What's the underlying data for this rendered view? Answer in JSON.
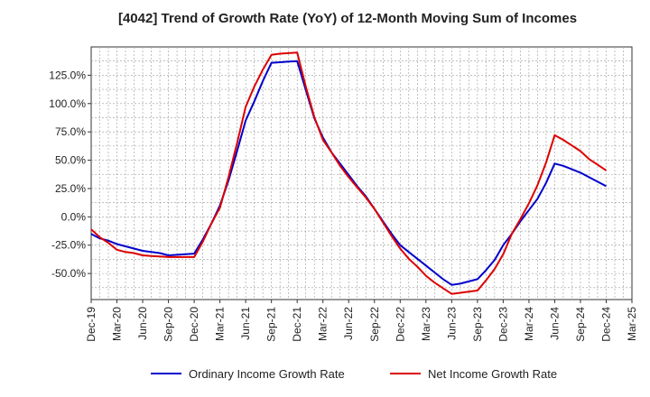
{
  "chart_data": {
    "type": "line",
    "title": "[4042]  Trend of Growth Rate (YoY) of 12-Month Moving Sum of Incomes",
    "xlabel": "",
    "ylabel": "",
    "x": [
      "Dec-19",
      "Jan-20",
      "Feb-20",
      "Mar-20",
      "Apr-20",
      "May-20",
      "Jun-20",
      "Jul-20",
      "Aug-20",
      "Sep-20",
      "Oct-20",
      "Nov-20",
      "Dec-20",
      "Jan-21",
      "Feb-21",
      "Mar-21",
      "Apr-21",
      "May-21",
      "Jun-21",
      "Jul-21",
      "Aug-21",
      "Sep-21",
      "Oct-21",
      "Nov-21",
      "Dec-21",
      "Jan-22",
      "Feb-22",
      "Mar-22",
      "Apr-22",
      "May-22",
      "Jun-22",
      "Jul-22",
      "Aug-22",
      "Sep-22",
      "Oct-22",
      "Nov-22",
      "Dec-22",
      "Jan-23",
      "Feb-23",
      "Mar-23",
      "Apr-23",
      "May-23",
      "Jun-23",
      "Jul-23",
      "Aug-23",
      "Sep-23",
      "Oct-23",
      "Nov-23",
      "Dec-23",
      "Jan-24",
      "Feb-24",
      "Mar-24",
      "Apr-24",
      "May-24",
      "Jun-24",
      "Jul-24",
      "Aug-24",
      "Sep-24",
      "Oct-24",
      "Nov-24",
      "Dec-24"
    ],
    "x_tick_labels": [
      "Dec-19",
      "Mar-20",
      "Jun-20",
      "Sep-20",
      "Dec-20",
      "Mar-21",
      "Jun-21",
      "Sep-21",
      "Dec-21",
      "Mar-22",
      "Jun-22",
      "Sep-22",
      "Dec-22",
      "Mar-23",
      "Jun-23",
      "Sep-23",
      "Dec-23",
      "Mar-24",
      "Jun-24",
      "Sep-24",
      "Dec-24",
      "Mar-25"
    ],
    "y_tick_labels": [
      "-50.0%",
      "-25.0%",
      "0.0%",
      "25.0%",
      "50.0%",
      "75.0%",
      "100.0%",
      "125.0%"
    ],
    "y_ticks": [
      -50,
      -25,
      0,
      25,
      50,
      75,
      100,
      125
    ],
    "ylim": [
      -73,
      150
    ],
    "xlim": [
      "Dec-19",
      "Mar-25"
    ],
    "grid": true,
    "legend_position": "bottom",
    "series": [
      {
        "name": "Ordinary Income Growth Rate",
        "color": "#0000cc",
        "values": [
          -15,
          -19,
          -21,
          -24,
          -26,
          -28,
          -30,
          -31,
          -32,
          -34,
          -33.5,
          -33,
          -32.5,
          -20,
          -6,
          10,
          32,
          58,
          85,
          102,
          120,
          136,
          136.5,
          137,
          137.5,
          112,
          87,
          70,
          57,
          47,
          37,
          27,
          18,
          7,
          -4,
          -15,
          -25,
          -31,
          -37,
          -43,
          -49,
          -55,
          -60,
          -59,
          -57,
          -55,
          -47,
          -38,
          -25,
          -15,
          -4,
          6,
          16,
          30,
          47,
          45,
          42,
          39,
          35,
          31,
          27
        ]
      },
      {
        "name": "Net Income Growth Rate",
        "color": "#dd0000",
        "values": [
          -11,
          -18,
          -23,
          -29,
          -31,
          -32,
          -34,
          -34.5,
          -35,
          -35.5,
          -35.5,
          -35.5,
          -35.5,
          -22,
          -6,
          8,
          35,
          65,
          97,
          115,
          130,
          143,
          144,
          144.5,
          145,
          115,
          88,
          68,
          57,
          45,
          35,
          26,
          17,
          7,
          -5,
          -17,
          -28,
          -37,
          -44,
          -52,
          -58,
          -63,
          -68,
          -67,
          -66,
          -65,
          -56,
          -46,
          -33,
          -15,
          -2,
          12,
          28,
          48,
          72,
          68,
          63,
          58,
          51,
          46,
          41
        ]
      }
    ]
  }
}
